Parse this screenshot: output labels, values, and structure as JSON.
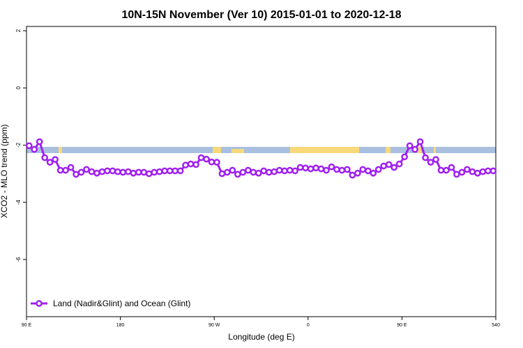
{
  "chart_data": {
    "type": "line",
    "title": "10N-15N November (Ver 10)   2015-01-01 to 2020-12-18",
    "x_label": "Longitude (deg E)",
    "y_label": "XCO2 - MLO trend (ppm)",
    "x": [
      92.5,
      97.5,
      102.5,
      107.5,
      112.5,
      117.5,
      122.5,
      127.5,
      132.5,
      137.5,
      142.5,
      147.5,
      152.5,
      157.5,
      162.5,
      167.5,
      172.5,
      177.5,
      182.5,
      187.5,
      192.5,
      197.5,
      202.5,
      207.5,
      212.5,
      217.5,
      222.5,
      227.5,
      232.5,
      237.5,
      242.5,
      247.5,
      252.5,
      257.5,
      262.5,
      267.5,
      272.5,
      277.5,
      282.5,
      287.5,
      292.5,
      297.5,
      302.5,
      307.5,
      312.5,
      317.5,
      322.5,
      327.5,
      332.5,
      337.5,
      342.5,
      347.5,
      352.5,
      357.5,
      362.5,
      367.5,
      372.5,
      377.5,
      382.5,
      387.5,
      392.5,
      397.5,
      402.5,
      407.5,
      412.5,
      417.5,
      422.5,
      427.5,
      432.5,
      437.5,
      442.5,
      447.5,
      452.5,
      457.5,
      462.5,
      467.5,
      472.5,
      477.5,
      482.5,
      487.5,
      492.5,
      497.5,
      502.5,
      507.5,
      512.5,
      517.5,
      522.5,
      527.5,
      532.5,
      537.5
    ],
    "series": [
      {
        "name": "Land (Nadir&Glint) and Ocean (Glint)",
        "color": "#a020f0",
        "values": [
          -2.02,
          -2.15,
          -1.88,
          -2.44,
          -2.6,
          -2.5,
          -2.88,
          -2.88,
          -2.78,
          -3.02,
          -2.95,
          -2.85,
          -2.93,
          -2.98,
          -2.93,
          -2.9,
          -2.9,
          -2.93,
          -2.95,
          -2.93,
          -2.98,
          -2.95,
          -2.95,
          -3.0,
          -2.95,
          -2.93,
          -2.9,
          -2.9,
          -2.9,
          -2.9,
          -2.7,
          -2.66,
          -2.68,
          -2.44,
          -2.49,
          -2.59,
          -2.6,
          -3.0,
          -2.95,
          -2.88,
          -3.02,
          -2.95,
          -2.88,
          -2.95,
          -2.98,
          -2.9,
          -2.95,
          -2.93,
          -2.88,
          -2.9,
          -2.88,
          -2.9,
          -2.78,
          -2.8,
          -2.83,
          -2.8,
          -2.83,
          -2.88,
          -2.76,
          -2.85,
          -2.88,
          -2.85,
          -3.05,
          -2.98,
          -2.85,
          -2.9,
          -2.98,
          -2.85,
          -2.73,
          -2.68,
          -2.78,
          -2.66,
          -2.41,
          -2.02,
          -2.15,
          -1.88,
          -2.44,
          -2.6,
          -2.5,
          -2.88,
          -2.88,
          -2.78,
          -3.02,
          -2.95,
          -2.85,
          -2.93,
          -2.98,
          -2.93,
          -2.9,
          -2.9
        ]
      }
    ],
    "xlim": [
      90,
      540
    ],
    "xticks": [
      {
        "value": 90,
        "label": "90 E"
      },
      180,
      {
        "value": 270,
        "label": "90 W"
      },
      {
        "value": 360,
        "label": "0"
      },
      {
        "value": 450,
        "label": "90 E"
      },
      540
    ],
    "ylim": [
      -8,
      2.15
    ],
    "yticks": [
      -6,
      -4,
      -2,
      0,
      2
    ],
    "legend": "bottomleft"
  }
}
